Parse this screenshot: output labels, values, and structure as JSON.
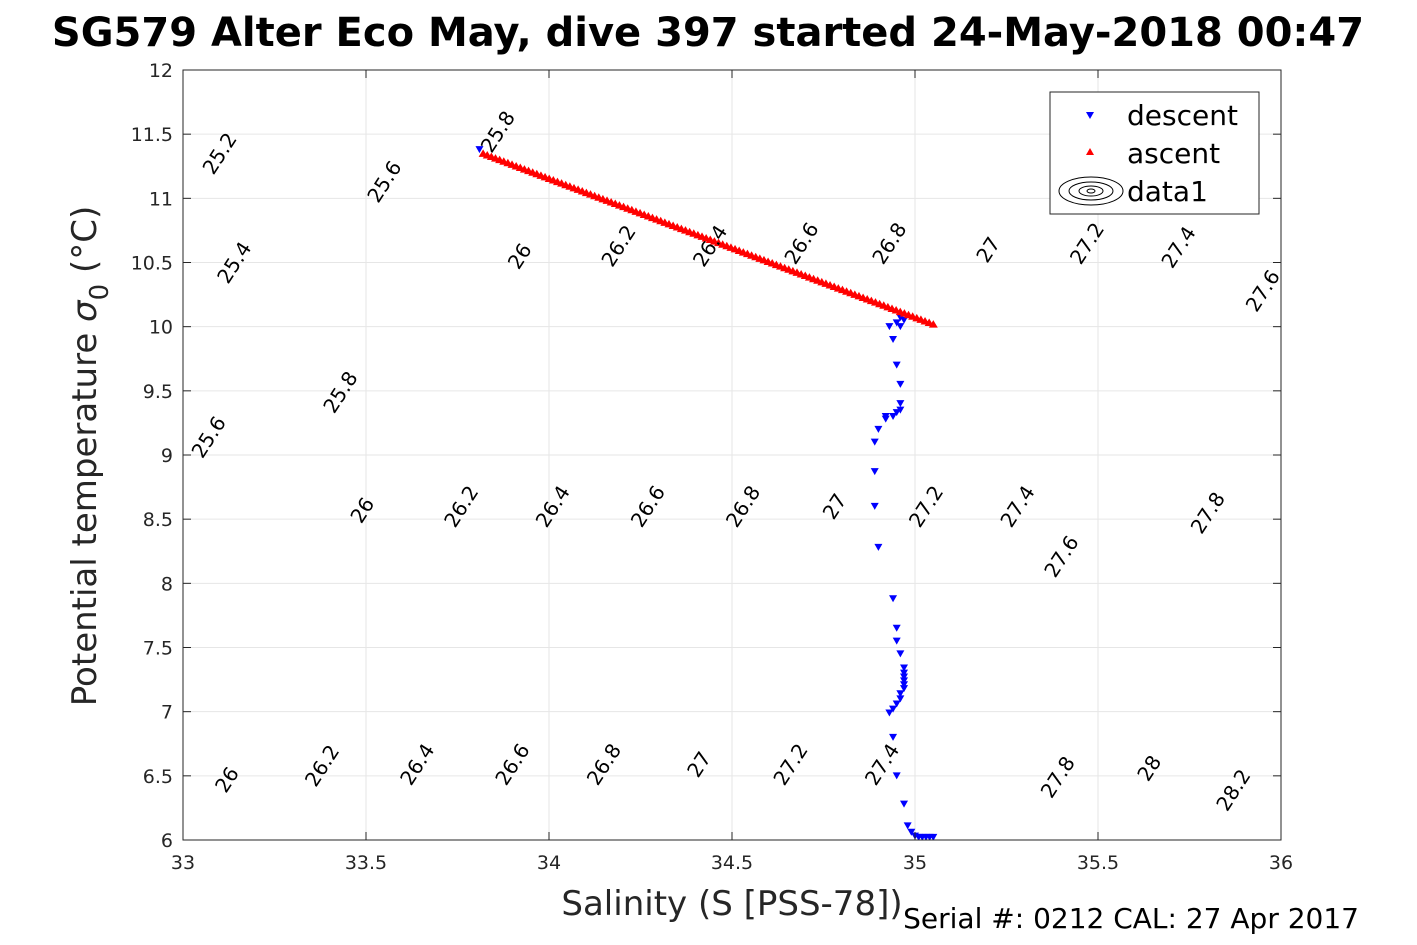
{
  "chart_data": {
    "type": "scatter",
    "title": "SG579 Alter Eco May, dive 397 started 24-May-2018 00:47",
    "xlabel": "Salinity (S [PSS-78])",
    "ylabel_main": "Potential temperature ",
    "ylabel_sigma": "σ",
    "ylabel_sub": "0",
    "ylabel_unit": " (°C)",
    "footer": "Serial #: 0212  CAL: 27 Apr 2017",
    "xlim": [
      33,
      36
    ],
    "ylim": [
      6,
      12
    ],
    "x_ticks": [
      33,
      33.5,
      34,
      34.5,
      35,
      35.5,
      36
    ],
    "x_tick_labels": [
      "33",
      "33.5",
      "34",
      "34.5",
      "35",
      "35.5",
      "36"
    ],
    "y_ticks": [
      6,
      6.5,
      7,
      7.5,
      8,
      8.5,
      9,
      9.5,
      10,
      10.5,
      11,
      11.5,
      12
    ],
    "y_tick_labels": [
      "6",
      "6.5",
      "7",
      "7.5",
      "8",
      "8.5",
      "9",
      "9.5",
      "10",
      "10.5",
      "11",
      "11.5",
      "12"
    ],
    "grid": true,
    "legend_position": "top-right",
    "series": [
      {
        "name": "descent",
        "marker": "triangle-down",
        "color": "#0000ff",
        "points": [
          [
            33.81,
            11.38
          ],
          [
            34.96,
            10.07
          ],
          [
            34.97,
            10.05
          ],
          [
            34.95,
            10.03
          ],
          [
            34.93,
            10.0
          ],
          [
            34.96,
            10.0
          ],
          [
            34.94,
            9.9
          ],
          [
            34.95,
            9.7
          ],
          [
            34.96,
            9.55
          ],
          [
            34.96,
            9.4
          ],
          [
            34.96,
            9.35
          ],
          [
            34.95,
            9.33
          ],
          [
            34.94,
            9.3
          ],
          [
            34.92,
            9.3
          ],
          [
            34.92,
            9.28
          ],
          [
            34.9,
            9.2
          ],
          [
            34.89,
            9.1
          ],
          [
            34.89,
            8.87
          ],
          [
            34.89,
            8.6
          ],
          [
            34.9,
            8.28
          ],
          [
            34.94,
            7.88
          ],
          [
            34.95,
            7.65
          ],
          [
            34.95,
            7.55
          ],
          [
            34.96,
            7.45
          ],
          [
            34.97,
            7.34
          ],
          [
            34.97,
            7.3
          ],
          [
            34.97,
            7.27
          ],
          [
            34.97,
            7.24
          ],
          [
            34.97,
            7.21
          ],
          [
            34.97,
            7.18
          ],
          [
            34.96,
            7.14
          ],
          [
            34.96,
            7.1
          ],
          [
            34.95,
            7.06
          ],
          [
            34.94,
            7.02
          ],
          [
            34.93,
            6.99
          ],
          [
            34.94,
            6.8
          ],
          [
            34.95,
            6.5
          ],
          [
            34.97,
            6.28
          ],
          [
            34.98,
            6.11
          ],
          [
            34.99,
            6.06
          ],
          [
            35.0,
            6.03
          ],
          [
            35.01,
            6.02
          ],
          [
            35.02,
            6.02
          ],
          [
            35.03,
            6.02
          ],
          [
            35.04,
            6.02
          ],
          [
            35.05,
            6.02
          ]
        ]
      },
      {
        "name": "ascent",
        "marker": "triangle-up",
        "color": "#ff0000",
        "points_from": [
          33.82,
          11.35
        ],
        "points_to": [
          35.05,
          10.02
        ],
        "point_count": 110
      }
    ],
    "legend_extra_entry": "data1",
    "contours": {
      "line_color": "#000000",
      "levels": [
        25.2,
        25.4,
        25.6,
        25.8,
        26,
        26.2,
        26.4,
        26.6,
        26.8,
        27,
        27.2,
        27.4,
        27.6,
        27.8,
        28,
        28.2
      ],
      "labels": [
        {
          "text": "25.2",
          "s": 33.1,
          "t": 11.35
        },
        {
          "text": "25.4",
          "s": 33.14,
          "t": 10.5
        },
        {
          "text": "25.6",
          "s": 33.07,
          "t": 9.14
        },
        {
          "text": "25.6",
          "s": 33.55,
          "t": 11.13
        },
        {
          "text": "25.8",
          "s": 33.43,
          "t": 9.49
        },
        {
          "text": "25.8",
          "s": 33.86,
          "t": 11.52
        },
        {
          "text": "26",
          "s": 33.12,
          "t": 6.47
        },
        {
          "text": "26",
          "s": 33.49,
          "t": 8.57
        },
        {
          "text": "26",
          "s": 33.92,
          "t": 10.55
        },
        {
          "text": "26.2",
          "s": 33.38,
          "t": 6.58
        },
        {
          "text": "26.2",
          "s": 33.76,
          "t": 8.6
        },
        {
          "text": "26.2",
          "s": 34.19,
          "t": 10.63
        },
        {
          "text": "26.4",
          "s": 33.64,
          "t": 6.59
        },
        {
          "text": "26.4",
          "s": 34.01,
          "t": 8.6
        },
        {
          "text": "26.4",
          "s": 34.44,
          "t": 10.63
        },
        {
          "text": "26.6",
          "s": 33.9,
          "t": 6.59
        },
        {
          "text": "26.6",
          "s": 34.27,
          "t": 8.6
        },
        {
          "text": "26.6",
          "s": 34.69,
          "t": 10.65
        },
        {
          "text": "26.8",
          "s": 34.15,
          "t": 6.59
        },
        {
          "text": "26.8",
          "s": 34.53,
          "t": 8.6
        },
        {
          "text": "26.8",
          "s": 34.93,
          "t": 10.65
        },
        {
          "text": "27",
          "s": 34.41,
          "t": 6.59
        },
        {
          "text": "27",
          "s": 34.78,
          "t": 8.6
        },
        {
          "text": "27",
          "s": 35.2,
          "t": 10.6
        },
        {
          "text": "27.2",
          "s": 34.66,
          "t": 6.59
        },
        {
          "text": "27.2",
          "s": 35.03,
          "t": 8.6
        },
        {
          "text": "27.2",
          "s": 35.47,
          "t": 10.65
        },
        {
          "text": "27.4",
          "s": 34.91,
          "t": 6.59
        },
        {
          "text": "27.4",
          "s": 35.28,
          "t": 8.6
        },
        {
          "text": "27.4",
          "s": 35.72,
          "t": 10.62
        },
        {
          "text": "27.6",
          "s": 35.4,
          "t": 8.21
        },
        {
          "text": "27.6",
          "s": 35.95,
          "t": 10.28
        },
        {
          "text": "27.8",
          "s": 35.39,
          "t": 6.49
        },
        {
          "text": "27.8",
          "s": 35.8,
          "t": 8.55
        },
        {
          "text": "28",
          "s": 35.64,
          "t": 6.56
        },
        {
          "text": "28.2",
          "s": 35.87,
          "t": 6.39
        }
      ]
    }
  }
}
